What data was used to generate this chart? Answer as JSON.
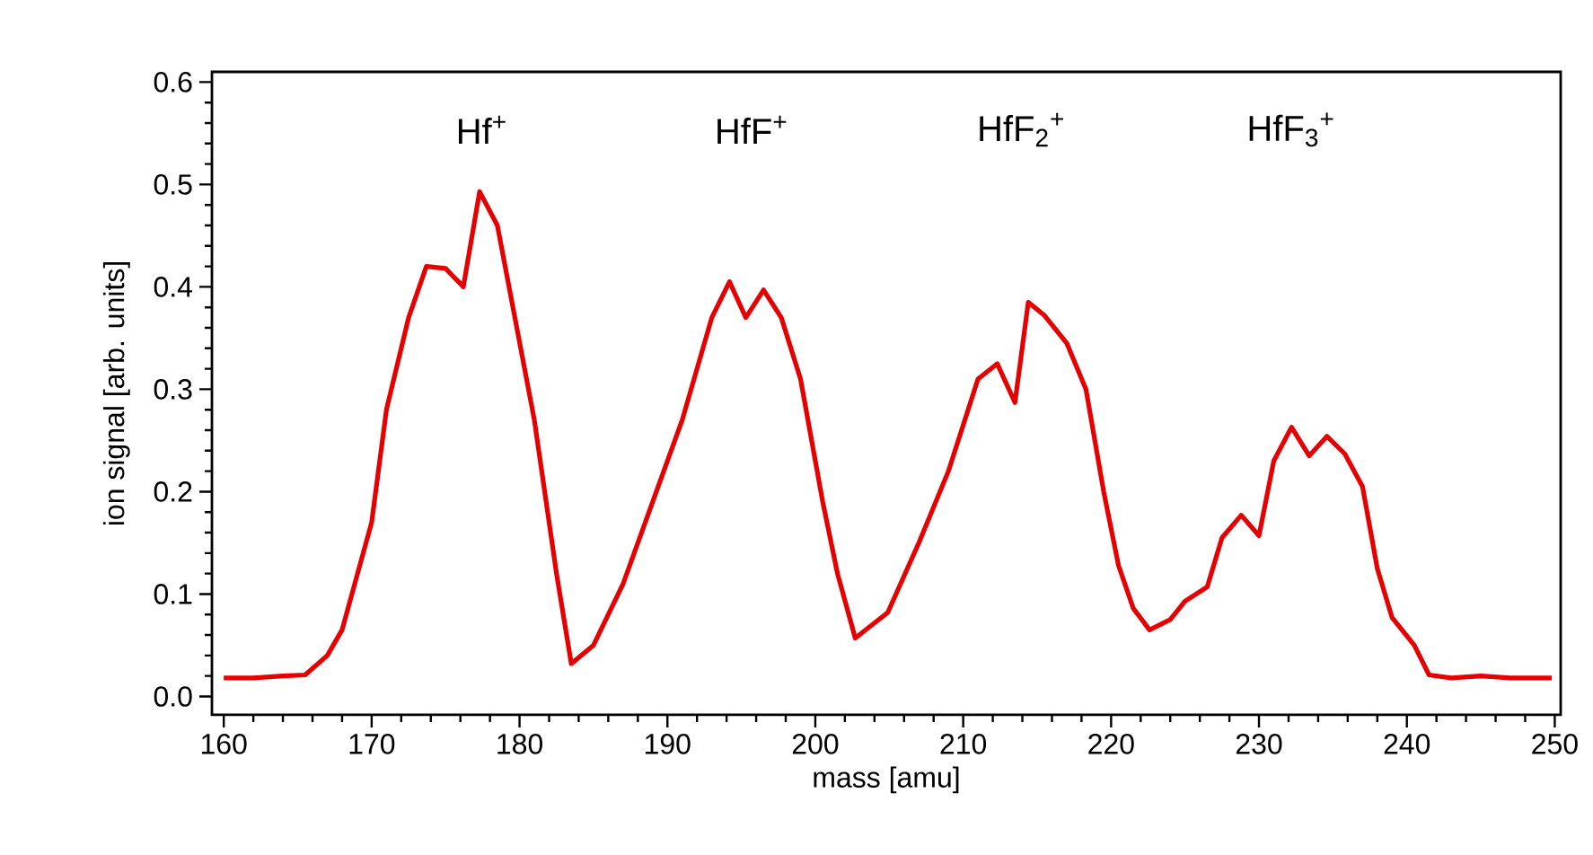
{
  "chart_data": {
    "type": "line",
    "xlabel": "mass [amu]",
    "ylabel": "ion signal [arb. units]",
    "xlim": [
      159.2,
      250.4
    ],
    "ylim": [
      -0.018,
      0.61
    ],
    "xticks": [
      160,
      170,
      180,
      190,
      200,
      210,
      220,
      230,
      240,
      250
    ],
    "yticks": [
      {
        "value": 0,
        "label": "0.0"
      },
      0.1,
      0.2,
      0.3,
      0.4,
      0.5,
      0.6
    ],
    "grid": false,
    "marker": "none",
    "line_style": "solid",
    "annotations": [
      "Hf$^{+}$",
      "HfF$^{+}$",
      "HfF$_{2}$$^{+}$",
      "HfF$_{3}$$^{+}$"
    ],
    "series": [
      {
        "color": "#e60000",
        "x": [
          160,
          162,
          164,
          165.5,
          167,
          168,
          170,
          171,
          172.5,
          173.7,
          175,
          176.2,
          177.3,
          178.5,
          181,
          182.5,
          183.5,
          185,
          187,
          189,
          191,
          193,
          194.2,
          195.3,
          196.5,
          197.7,
          199,
          200.5,
          201.5,
          202.7,
          204.9,
          207,
          209,
          211,
          212.3,
          213.5,
          214.4,
          215.5,
          217,
          218.3,
          219.5,
          220.5,
          221.5,
          222.6,
          224,
          225,
          226.5,
          227.5,
          228.8,
          230,
          231,
          232.2,
          233.4,
          234.6,
          235.8,
          237,
          238,
          239,
          240.5,
          241.5,
          243,
          245,
          247,
          249.8
        ],
        "values": [
          0.018,
          0.018,
          0.02,
          0.021,
          0.04,
          0.065,
          0.17,
          0.28,
          0.37,
          0.42,
          0.418,
          0.4,
          0.493,
          0.46,
          0.27,
          0.12,
          0.032,
          0.05,
          0.11,
          0.19,
          0.27,
          0.37,
          0.405,
          0.37,
          0.397,
          0.37,
          0.31,
          0.19,
          0.12,
          0.057,
          0.082,
          0.15,
          0.22,
          0.31,
          0.325,
          0.287,
          0.385,
          0.372,
          0.345,
          0.3,
          0.2,
          0.128,
          0.086,
          0.065,
          0.075,
          0.093,
          0.107,
          0.155,
          0.177,
          0.157,
          0.23,
          0.263,
          0.235,
          0.254,
          0.237,
          0.205,
          0.125,
          0.077,
          0.05,
          0.021,
          0.018,
          0.02,
          0.018,
          0.018
        ]
      }
    ]
  }
}
